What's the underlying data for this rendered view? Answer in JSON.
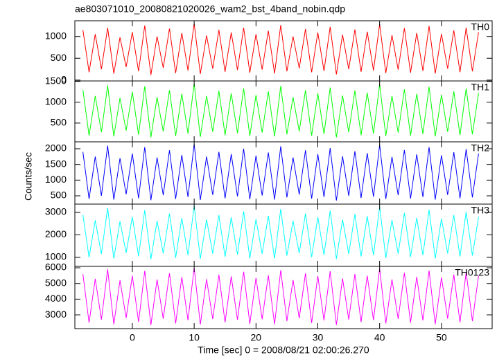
{
  "title": "ae803071010_20080821020026_wam2_bst_4band_nobin.qdp",
  "y_label": "Counts/sec",
  "x_label": "Time [sec] 0 = 2008/08/21 02:00:26.270",
  "chart_data": [
    {
      "type": "line",
      "label": "TH0",
      "color": "#ff0000",
      "x": [
        -8,
        -7,
        -6,
        -5,
        -4,
        -3,
        -2,
        -1,
        0,
        1,
        2,
        3,
        4,
        5,
        6,
        7,
        8,
        9,
        10,
        11,
        12,
        13,
        14,
        15,
        16,
        17,
        18,
        19,
        20,
        21,
        22,
        23,
        24,
        25,
        26,
        27,
        28,
        29,
        30,
        31,
        32,
        33,
        34,
        35,
        36,
        37,
        38,
        39,
        40,
        41,
        42,
        43,
        44,
        45,
        46,
        47,
        48,
        49,
        50,
        51,
        52,
        53,
        54,
        55,
        56
      ],
      "values": [
        1150,
        180,
        1050,
        250,
        1200,
        150,
        980,
        300,
        1100,
        200,
        1250,
        120,
        1000,
        280,
        1180,
        160,
        1080,
        220,
        1300,
        140,
        1020,
        260,
        1150,
        190,
        1090,
        230,
        1200,
        170,
        1050,
        240,
        1130,
        150,
        1260,
        200,
        1000,
        270,
        1170,
        180,
        1090,
        210,
        1220,
        130,
        1040,
        250,
        1160,
        190,
        1110,
        220,
        1280,
        160,
        1030,
        240,
        1190,
        170,
        1080,
        210,
        1240,
        150,
        1060,
        260,
        1140,
        180,
        1200,
        200,
        1100
      ],
      "ylim": [
        -20,
        1360
      ],
      "yticks": [
        0,
        500,
        1000
      ]
    },
    {
      "type": "line",
      "label": "TH1",
      "color": "#00ff00",
      "x": [
        -8,
        -7,
        -6,
        -5,
        -4,
        -3,
        -2,
        -1,
        0,
        1,
        2,
        3,
        4,
        5,
        6,
        7,
        8,
        9,
        10,
        11,
        12,
        13,
        14,
        15,
        16,
        17,
        18,
        19,
        20,
        21,
        22,
        23,
        24,
        25,
        26,
        27,
        28,
        29,
        30,
        31,
        32,
        33,
        34,
        35,
        36,
        37,
        38,
        39,
        40,
        41,
        42,
        43,
        44,
        45,
        46,
        47,
        48,
        49,
        50,
        51,
        52,
        53,
        54,
        55,
        56
      ],
      "values": [
        1300,
        200,
        1150,
        280,
        1400,
        180,
        1100,
        320,
        1250,
        220,
        1380,
        160,
        1120,
        300,
        1290,
        190,
        1200,
        250,
        1450,
        170,
        1150,
        290,
        1270,
        210,
        1210,
        260,
        1330,
        190,
        1170,
        270,
        1260,
        180,
        1390,
        230,
        1120,
        300,
        1290,
        200,
        1210,
        240,
        1350,
        160,
        1160,
        280,
        1280,
        210,
        1230,
        250,
        1420,
        190,
        1150,
        270,
        1310,
        200,
        1200,
        240,
        1370,
        180,
        1180,
        290,
        1260,
        210,
        1330,
        230,
        1220
      ],
      "ylim": [
        50,
        1510
      ],
      "yticks": [
        500,
        1000,
        1500
      ]
    },
    {
      "type": "line",
      "label": "TH2",
      "color": "#0000ff",
      "x": [
        -8,
        -7,
        -6,
        -5,
        -4,
        -3,
        -2,
        -1,
        0,
        1,
        2,
        3,
        4,
        5,
        6,
        7,
        8,
        9,
        10,
        11,
        12,
        13,
        14,
        15,
        16,
        17,
        18,
        19,
        20,
        21,
        22,
        23,
        24,
        25,
        26,
        27,
        28,
        29,
        30,
        31,
        32,
        33,
        34,
        35,
        36,
        37,
        38,
        39,
        40,
        41,
        42,
        43,
        44,
        45,
        46,
        47,
        48,
        49,
        50,
        51,
        52,
        53,
        54,
        55,
        56
      ],
      "values": [
        1900,
        400,
        1750,
        500,
        2100,
        380,
        1700,
        550,
        1850,
        420,
        2050,
        360,
        1720,
        520,
        1950,
        400,
        1800,
        460,
        2150,
        370,
        1750,
        530,
        1900,
        420,
        1830,
        480,
        2000,
        390,
        1780,
        510,
        1880,
        380,
        2080,
        450,
        1720,
        540,
        1950,
        410,
        1830,
        460,
        2020,
        350,
        1760,
        500,
        1920,
        430,
        1860,
        470,
        2120,
        400,
        1740,
        520,
        1960,
        410,
        1820,
        460,
        2050,
        380,
        1790,
        530,
        1890,
        420,
        1990,
        450,
        1850
      ],
      "ylim": [
        236,
        2220
      ],
      "yticks": [
        500,
        1000,
        1500,
        2000
      ]
    },
    {
      "type": "line",
      "label": "TH3",
      "color": "#00ffff",
      "x": [
        -8,
        -7,
        -6,
        -5,
        -4,
        -3,
        -2,
        -1,
        0,
        1,
        2,
        3,
        4,
        5,
        6,
        7,
        8,
        9,
        10,
        11,
        12,
        13,
        14,
        15,
        16,
        17,
        18,
        19,
        20,
        21,
        22,
        23,
        24,
        25,
        26,
        27,
        28,
        29,
        30,
        31,
        32,
        33,
        34,
        35,
        36,
        37,
        38,
        39,
        40,
        41,
        42,
        43,
        44,
        45,
        46,
        47,
        48,
        49,
        50,
        51,
        52,
        53,
        54,
        55,
        56
      ],
      "values": [
        2900,
        1000,
        2650,
        1150,
        3200,
        950,
        2600,
        1200,
        2800,
        1050,
        3100,
        920,
        2620,
        1180,
        2950,
        980,
        2750,
        1100,
        3300,
        940,
        2680,
        1170,
        2880,
        1030,
        2780,
        1120,
        3050,
        960,
        2700,
        1160,
        2850,
        950,
        3150,
        1080,
        2620,
        1190,
        2950,
        1010,
        2790,
        1110,
        3080,
        930,
        2680,
        1150,
        2920,
        1040,
        2830,
        1100,
        3250,
        980,
        2660,
        1170,
        2980,
        1020,
        2760,
        1100,
        3120,
        950,
        2720,
        1180,
        2880,
        1040,
        3020,
        1080,
        2800
      ],
      "ylim": [
        600,
        3370
      ],
      "yticks": [
        1000,
        2000,
        3000
      ]
    },
    {
      "type": "line",
      "label": "TH0123",
      "color": "#ff00ff",
      "x": [
        -8,
        -7,
        -6,
        -5,
        -4,
        -3,
        -2,
        -1,
        0,
        1,
        2,
        3,
        4,
        5,
        6,
        7,
        8,
        9,
        10,
        11,
        12,
        13,
        14,
        15,
        16,
        17,
        18,
        19,
        20,
        21,
        22,
        23,
        24,
        25,
        26,
        27,
        28,
        29,
        30,
        31,
        32,
        33,
        34,
        35,
        36,
        37,
        38,
        39,
        40,
        41,
        42,
        43,
        44,
        45,
        46,
        47,
        48,
        49,
        50,
        51,
        52,
        53,
        54,
        55,
        56
      ],
      "values": [
        5600,
        2500,
        5300,
        2700,
        5900,
        2400,
        5200,
        2800,
        5500,
        2550,
        5800,
        2350,
        5250,
        2750,
        5650,
        2450,
        5400,
        2650,
        6000,
        2380,
        5280,
        2730,
        5550,
        2520,
        5450,
        2680,
        5750,
        2420,
        5350,
        2720,
        5520,
        2400,
        5850,
        2600,
        5220,
        2780,
        5650,
        2480,
        5480,
        2640,
        5780,
        2360,
        5320,
        2700,
        5600,
        2540,
        5500,
        2660,
        5950,
        2450,
        5260,
        2740,
        5680,
        2500,
        5420,
        2640,
        5820,
        2400,
        5380,
        2760,
        5560,
        2520,
        5720,
        2600,
        5500
      ],
      "ylim": [
        2120,
        6090
      ],
      "yticks": [
        3000,
        4000,
        5000,
        6000
      ],
      "xlim": [
        -9.3,
        58.2
      ],
      "xticks": [
        0,
        10,
        20,
        30,
        40,
        50
      ]
    }
  ]
}
